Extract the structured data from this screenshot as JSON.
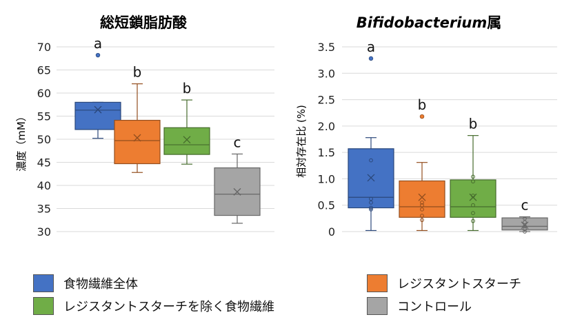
{
  "chart_data": [
    {
      "type": "boxplot",
      "title": "総短鎖脂肪酸",
      "ylabel": "濃度（mM）",
      "ylim": [
        30,
        70
      ],
      "yticks": [
        30,
        35,
        40,
        45,
        50,
        55,
        60,
        65,
        70
      ],
      "grid": true,
      "series": [
        {
          "group": "食物繊維全体",
          "color": "#4472c4",
          "whisker_low": 50.2,
          "q1": 52.1,
          "median": 56.3,
          "q3": 58.0,
          "whisker_high": 58.0,
          "mean": 56.4,
          "outliers": [
            68.2
          ],
          "letter": "a"
        },
        {
          "group": "レジスタントスターチ",
          "color": "#ed7d31",
          "whisker_low": 42.8,
          "q1": 44.7,
          "median": 49.7,
          "q3": 54.1,
          "whisker_high": 62.0,
          "mean": 50.3,
          "outliers": [],
          "letter": "b"
        },
        {
          "group": "レジスタントスターチを除く食物繊維",
          "color": "#70ad47",
          "whisker_low": 44.6,
          "q1": 46.7,
          "median": 48.8,
          "q3": 52.5,
          "whisker_high": 58.5,
          "mean": 49.9,
          "outliers": [],
          "letter": "b"
        },
        {
          "group": "コントロール",
          "color": "#a5a5a5",
          "whisker_low": 31.8,
          "q1": 33.5,
          "median": 38.1,
          "q3": 43.8,
          "whisker_high": 46.8,
          "mean": 38.6,
          "outliers": [],
          "letter": "c"
        }
      ]
    },
    {
      "type": "boxplot",
      "title": "Bifidobacterium属",
      "title_italic_part": "Bifidobacterium",
      "title_rest": "属",
      "ylabel": "相対存在比 (%)",
      "ylim": [
        0,
        3.5
      ],
      "yticks": [
        "0",
        "0.5",
        "1.0",
        "1.5",
        "2.0",
        "2.5",
        "3.0",
        "3.5"
      ],
      "grid": true,
      "series": [
        {
          "group": "食物繊維全体",
          "color": "#4472c4",
          "whisker_low": 0.02,
          "q1": 0.45,
          "median": 0.65,
          "q3": 1.57,
          "whisker_high": 1.78,
          "mean": 1.02,
          "outliers": [
            3.28
          ],
          "points": [
            0.42,
            0.45,
            0.55,
            0.62,
            1.35
          ],
          "letter": "a"
        },
        {
          "group": "レジスタントスターチ",
          "color": "#ed7d31",
          "whisker_low": 0.02,
          "q1": 0.27,
          "median": 0.47,
          "q3": 0.96,
          "whisker_high": 1.31,
          "mean": 0.65,
          "outliers": [
            2.18
          ],
          "points": [
            0.22,
            0.3,
            0.42,
            0.5,
            0.55
          ],
          "letter": "b"
        },
        {
          "group": "レジスタントスターチを除く食物繊維",
          "color": "#70ad47",
          "whisker_low": 0.02,
          "q1": 0.27,
          "median": 0.47,
          "q3": 0.98,
          "whisker_high": 1.82,
          "mean": 0.65,
          "outliers": [],
          "points": [
            0.2,
            0.35,
            0.5,
            0.68,
            0.95,
            1.04
          ],
          "letter": "b"
        },
        {
          "group": "コントロール",
          "color": "#a5a5a5",
          "whisker_low": 0.0,
          "q1": 0.03,
          "median": 0.1,
          "q3": 0.26,
          "whisker_high": 0.28,
          "mean": 0.12,
          "outliers": [],
          "points": [
            0.0,
            0.05,
            0.1,
            0.18,
            0.25
          ],
          "letter": "c"
        }
      ]
    }
  ],
  "legend": [
    {
      "label": "食物繊維全体",
      "color": "#4472c4"
    },
    {
      "label": "レジスタントスターチ",
      "color": "#ed7d31"
    },
    {
      "label": "レジスタントスターチを除く食物繊維",
      "color": "#70ad47"
    },
    {
      "label": "コントロール",
      "color": "#a5a5a5"
    }
  ]
}
